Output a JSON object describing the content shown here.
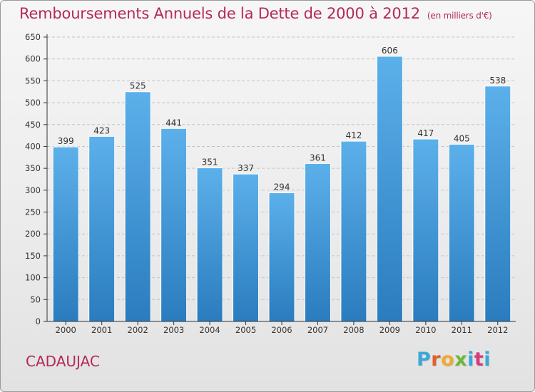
{
  "title": "Remboursements Annuels de la Dette de 2000 à 2012",
  "subtitle": "(en milliers d'€)",
  "commune": "CADAUJAC",
  "logo": {
    "text": "Proxiti",
    "icon": "proxiti-logo"
  },
  "colors": {
    "title": "#b5285a",
    "bar_top": "#5aaee6",
    "bar_bottom": "#2a7ec0",
    "axis": "#333333",
    "grid": "#c8c8c8"
  },
  "chart_data": {
    "type": "bar",
    "categories": [
      "2000",
      "2001",
      "2002",
      "2003",
      "2004",
      "2005",
      "2006",
      "2007",
      "2008",
      "2009",
      "2010",
      "2011",
      "2012"
    ],
    "values": [
      399,
      423,
      525,
      441,
      351,
      337,
      294,
      361,
      412,
      606,
      417,
      405,
      538
    ],
    "yticks": [
      0,
      50,
      100,
      150,
      200,
      250,
      300,
      350,
      400,
      450,
      500,
      550,
      600,
      650
    ],
    "ylim": [
      0,
      650
    ],
    "grid": true,
    "data_labels": true
  }
}
